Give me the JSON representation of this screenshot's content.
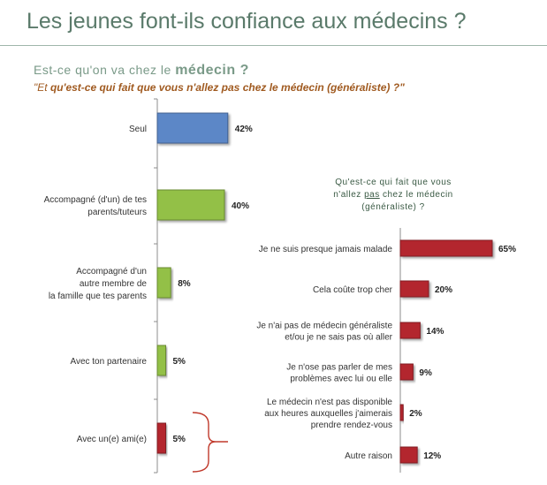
{
  "header": {
    "title": "Les jeunes font-ils confiance aux médecins ?",
    "subtitle_prefix": "Est-ce qu'on va chez le ",
    "subtitle_keyword": "médecin ?",
    "question_lead": "\"Et ",
    "question_body": "qu'est-ce qui fait que vous n'allez pas chez le médecin (généraliste) ?\""
  },
  "colors": {
    "blue": "#5b87c7",
    "green": "#93c047",
    "red": "#b3262f",
    "brace": "#c0392b"
  },
  "chart_data": [
    {
      "type": "bar",
      "orientation": "horizontal",
      "categories": [
        [
          "Seul"
        ],
        [
          "Accompagné (d'un) de tes",
          "parents/tuteurs"
        ],
        [
          "Accompagné d'un",
          "autre membre de",
          "la famille que tes parents"
        ],
        [
          "Avec ton partenaire"
        ],
        [
          "Avec un(e) ami(e)"
        ]
      ],
      "values": [
        42,
        40,
        8,
        5,
        5
      ],
      "labels": [
        "42%",
        "40%",
        "8%",
        "5%",
        "5%"
      ],
      "bar_colors": [
        "#5b87c7",
        "#93c047",
        "#93c047",
        "#93c047",
        "#b3262f"
      ],
      "xlim": [
        0,
        100
      ]
    },
    {
      "type": "bar",
      "orientation": "horizontal",
      "title_lines": [
        "Qu'est-ce qui fait que vous",
        "n'allez ",
        "pas",
        " chez le médecin",
        "(généraliste) ?"
      ],
      "categories": [
        [
          "Je ne suis presque jamais malade"
        ],
        [
          "Cela coûte trop cher"
        ],
        [
          "Je n'ai pas de médecin généraliste",
          "et/ou je ne sais pas où aller"
        ],
        [
          "Je n'ose pas parler de mes",
          "problèmes avec lui ou elle"
        ],
        [
          "Le médecin n'est pas disponible",
          "aux heures auxquelles j'aimerais",
          "prendre rendez-vous"
        ],
        [
          "Autre raison"
        ]
      ],
      "values": [
        65,
        20,
        14,
        9,
        2,
        12
      ],
      "labels": [
        "65%",
        "20%",
        "14%",
        "9%",
        "2%",
        "12%"
      ],
      "color": "#b3262f",
      "xlim": [
        0,
        100
      ]
    }
  ]
}
